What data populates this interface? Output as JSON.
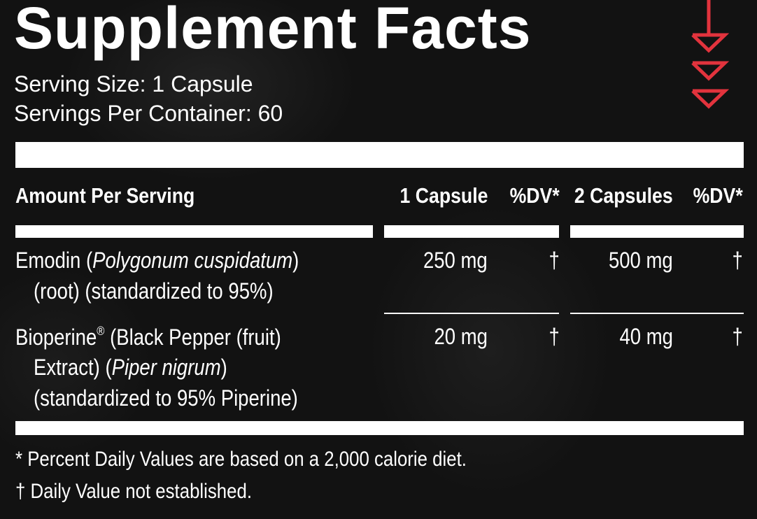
{
  "title": "Supplement Facts",
  "serving_size": "Serving Size: 1 Capsule",
  "servings_per_container": "Servings Per Container: 60",
  "table": {
    "header": [
      "Amount Per Serving",
      "1 Capsule",
      "%DV*",
      "2 Capsules",
      "%DV*"
    ],
    "rows": [
      {
        "name": [
          [
            {
              "text": "Emodin ("
            },
            {
              "text": "Polygonum cuspidatum",
              "style": "italic"
            },
            {
              "text": ")"
            }
          ],
          [
            {
              "text": "(root) (standardized to 95%)"
            }
          ]
        ],
        "cells": [
          "250 mg",
          "†",
          "500 mg",
          "†"
        ]
      },
      {
        "name": [
          [
            {
              "text": "Bioperine"
            },
            {
              "text": "®",
              "style": "sup"
            },
            {
              "text": " (Black Pepper (fruit)"
            }
          ],
          [
            {
              "text": "Extract) ("
            },
            {
              "text": "Piper nigrum",
              "style": "italic"
            },
            {
              "text": ")"
            }
          ],
          [
            {
              "text": "(standardized to 95% Piperine)"
            }
          ]
        ],
        "cells": [
          "20 mg",
          "†",
          "40 mg",
          "†"
        ]
      }
    ]
  },
  "footnotes": [
    "* Percent Daily Values are based on a 2,000 calorie diet.",
    "† Daily Value not established."
  ]
}
